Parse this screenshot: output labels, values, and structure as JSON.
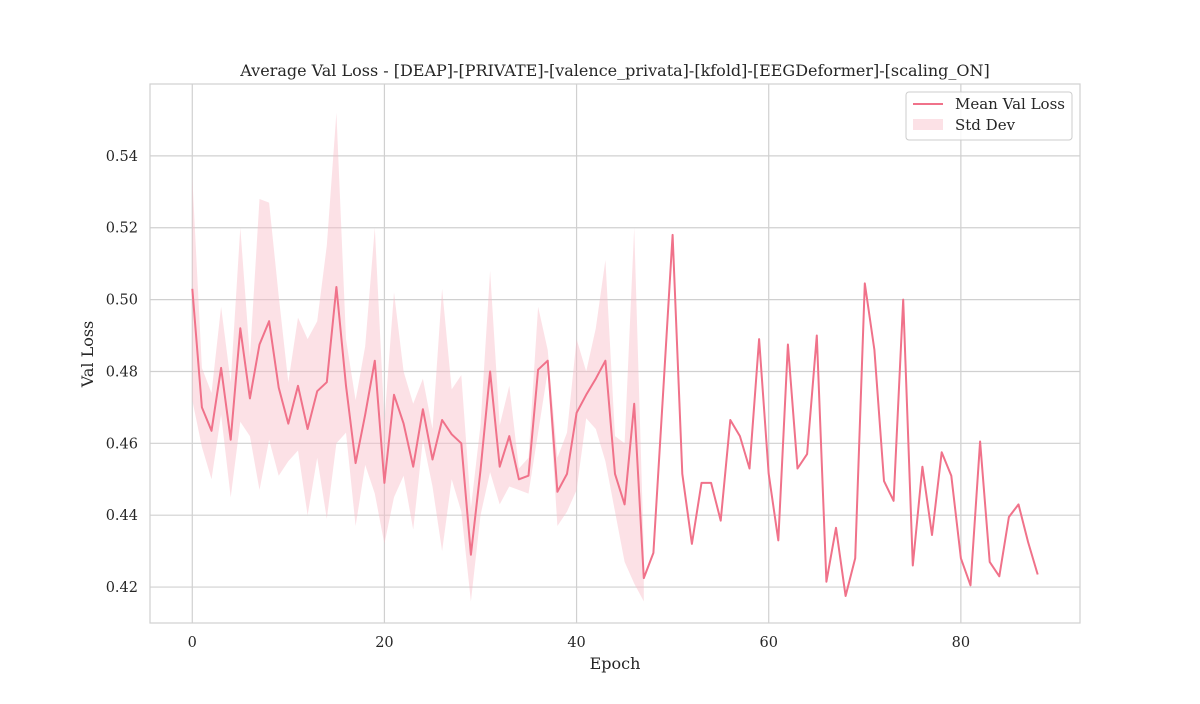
{
  "chart_data": {
    "type": "line",
    "title": "Average Val Loss - [DEAP]-[PRIVATE]-[valence_privata]-[kfold]-[EEGDeformer]-[scaling_ON]",
    "xlabel": "Epoch",
    "ylabel": "Val Loss",
    "xlim": [
      -4.4,
      92.4
    ],
    "ylim": [
      0.41,
      0.56
    ],
    "xticks": [
      0,
      20,
      40,
      60,
      80
    ],
    "xtick_labels": [
      "0",
      "20",
      "40",
      "60",
      "80"
    ],
    "yticks": [
      0.42,
      0.44,
      0.46,
      0.48,
      0.5,
      0.52,
      0.54
    ],
    "ytick_labels": [
      "0.42",
      "0.44",
      "0.46",
      "0.48",
      "0.50",
      "0.52",
      "0.54"
    ],
    "grid": true,
    "legend_position": "top-right",
    "series": [
      {
        "name": "Mean Val Loss",
        "color": "#f0728a",
        "x": [
          0,
          1,
          2,
          3,
          4,
          5,
          6,
          7,
          8,
          9,
          10,
          11,
          12,
          13,
          14,
          15,
          16,
          17,
          18,
          19,
          20,
          21,
          22,
          23,
          24,
          25,
          26,
          27,
          28,
          29,
          30,
          31,
          32,
          33,
          34,
          35,
          36,
          37,
          38,
          39,
          40,
          41,
          42,
          43,
          44,
          45,
          46,
          47,
          48,
          49,
          50,
          51,
          52,
          53,
          54,
          55,
          56,
          57,
          58,
          59,
          60,
          61,
          62,
          63,
          64,
          65,
          66,
          67,
          68,
          69,
          70,
          71,
          72,
          73,
          74,
          75,
          76,
          77,
          78,
          79,
          80,
          81,
          82,
          83,
          84,
          85,
          86,
          87,
          88
        ],
        "values": [
          0.503,
          0.47,
          0.4635,
          0.481,
          0.461,
          0.492,
          0.4725,
          0.4875,
          0.494,
          0.4755,
          0.4655,
          0.476,
          0.464,
          0.4745,
          0.477,
          0.5035,
          0.476,
          0.4545,
          0.468,
          0.483,
          0.449,
          0.4735,
          0.4655,
          0.4535,
          0.4695,
          0.4555,
          0.4665,
          0.4625,
          0.46,
          0.429,
          0.4525,
          0.48,
          0.4535,
          0.462,
          0.45,
          0.451,
          0.4805,
          0.483,
          0.4465,
          0.4515,
          0.4685,
          0.4735,
          0.478,
          0.483,
          0.4515,
          0.443,
          0.471,
          0.4225,
          0.4295,
          0.4735,
          0.518,
          0.4515,
          0.432,
          0.449,
          0.449,
          0.4385,
          0.4665,
          0.462,
          0.453,
          0.489,
          0.4515,
          0.433,
          0.4875,
          0.453,
          0.457,
          0.49,
          0.4215,
          0.4365,
          0.4175,
          0.428,
          0.5045,
          0.486,
          0.4495,
          0.444,
          0.5,
          0.426,
          0.4535,
          0.4345,
          0.4575,
          0.451,
          0.428,
          0.4205,
          0.4605,
          0.427,
          0.423,
          0.4395,
          0.443,
          0.4325,
          0.4235
        ]
      },
      {
        "name": "Std Dev",
        "color": "#f8bcc7",
        "type": "band",
        "x": [
          0,
          1,
          2,
          3,
          4,
          5,
          6,
          7,
          8,
          9,
          10,
          11,
          12,
          13,
          14,
          15,
          16,
          17,
          18,
          19,
          20,
          21,
          22,
          23,
          24,
          25,
          26,
          27,
          28,
          29,
          30,
          31,
          32,
          33,
          34,
          35,
          36,
          37,
          38,
          39,
          40,
          41,
          42,
          43,
          44,
          45,
          46,
          47
        ],
        "upper": [
          0.534,
          0.481,
          0.474,
          0.498,
          0.477,
          0.52,
          0.484,
          0.528,
          0.527,
          0.501,
          0.477,
          0.495,
          0.489,
          0.494,
          0.515,
          0.552,
          0.489,
          0.472,
          0.487,
          0.52,
          0.466,
          0.502,
          0.48,
          0.471,
          0.478,
          0.464,
          0.503,
          0.475,
          0.479,
          0.442,
          0.465,
          0.508,
          0.465,
          0.476,
          0.453,
          0.456,
          0.498,
          0.486,
          0.456,
          0.463,
          0.489,
          0.48,
          0.492,
          0.511,
          0.462,
          0.46,
          0.52,
          0.43
        ],
        "lower": [
          0.472,
          0.459,
          0.45,
          0.468,
          0.445,
          0.466,
          0.462,
          0.447,
          0.461,
          0.451,
          0.455,
          0.458,
          0.44,
          0.456,
          0.439,
          0.46,
          0.463,
          0.437,
          0.454,
          0.446,
          0.432,
          0.445,
          0.451,
          0.436,
          0.461,
          0.448,
          0.43,
          0.45,
          0.441,
          0.416,
          0.44,
          0.452,
          0.443,
          0.448,
          0.447,
          0.446,
          0.463,
          0.48,
          0.437,
          0.441,
          0.447,
          0.467,
          0.464,
          0.455,
          0.441,
          0.427,
          0.421,
          0.416
        ]
      }
    ]
  }
}
